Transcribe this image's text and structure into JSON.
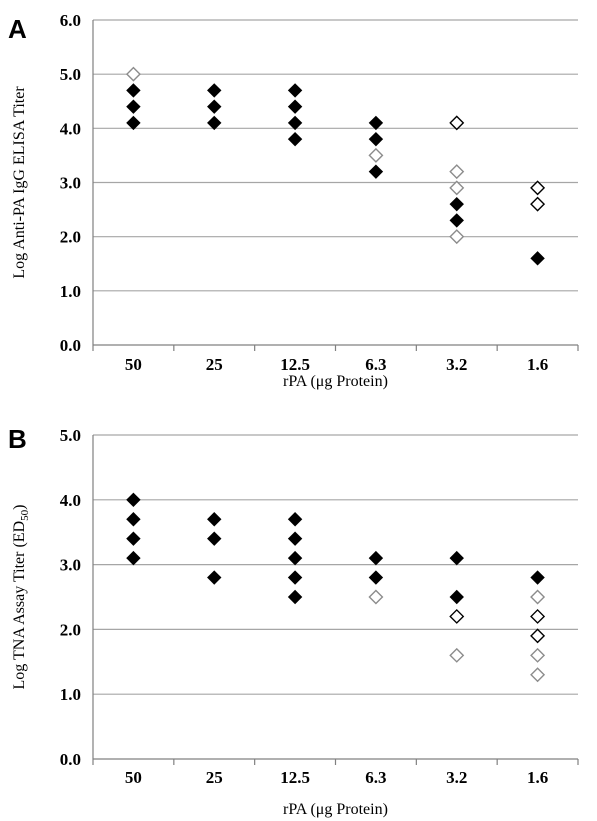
{
  "chart_data": [
    {
      "panel": "A",
      "type": "scatter",
      "categories": [
        "50",
        "25",
        "12.5",
        "6.3",
        "3.2",
        "1.6"
      ],
      "xlabel": "rPA (μg Protein)",
      "ylabel": "Log Anti-PA IgG ELISA Titer",
      "ylim": [
        0,
        6
      ],
      "yticks": [
        "0.0",
        "1.0",
        "2.0",
        "3.0",
        "4.0",
        "5.0",
        "6.0"
      ],
      "grid": true,
      "series": [
        {
          "marker": "filled-diamond",
          "color": "#000000",
          "points": [
            [
              "50",
              4.7
            ],
            [
              "50",
              4.4
            ],
            [
              "50",
              4.1
            ],
            [
              "25",
              4.7
            ],
            [
              "25",
              4.4
            ],
            [
              "25",
              4.1
            ],
            [
              "12.5",
              4.7
            ],
            [
              "12.5",
              4.4
            ],
            [
              "12.5",
              4.1
            ],
            [
              "12.5",
              3.8
            ],
            [
              "6.3",
              4.1
            ],
            [
              "6.3",
              3.8
            ],
            [
              "6.3",
              3.2
            ],
            [
              "3.2",
              2.6
            ],
            [
              "3.2",
              2.3
            ],
            [
              "1.6",
              1.6
            ]
          ]
        },
        {
          "marker": "open-diamond-black",
          "color": "#000000",
          "points": [
            [
              "3.2",
              4.1
            ],
            [
              "1.6",
              2.9
            ],
            [
              "1.6",
              2.6
            ]
          ]
        },
        {
          "marker": "open-diamond-gray",
          "color": "#8c8c8c",
          "points": [
            [
              "50",
              5.0
            ],
            [
              "6.3",
              3.5
            ],
            [
              "3.2",
              3.2
            ],
            [
              "3.2",
              2.9
            ],
            [
              "3.2",
              2.0
            ]
          ]
        }
      ]
    },
    {
      "panel": "B",
      "type": "scatter",
      "categories": [
        "50",
        "25",
        "12.5",
        "6.3",
        "3.2",
        "1.6"
      ],
      "xlabel": "rPA (μg Protein)",
      "ylabel_main": "Log TNA Assay Titer (ED",
      "ylabel_sub": "50",
      "ylabel_end": ")",
      "ylim": [
        0,
        5
      ],
      "yticks": [
        "0.0",
        "1.0",
        "2.0",
        "3.0",
        "4.0",
        "5.0"
      ],
      "grid": true,
      "series": [
        {
          "marker": "filled-diamond",
          "color": "#000000",
          "points": [
            [
              "50",
              4.0
            ],
            [
              "50",
              3.7
            ],
            [
              "50",
              3.4
            ],
            [
              "50",
              3.1
            ],
            [
              "25",
              3.7
            ],
            [
              "25",
              3.4
            ],
            [
              "25",
              2.8
            ],
            [
              "12.5",
              3.7
            ],
            [
              "12.5",
              3.4
            ],
            [
              "12.5",
              3.1
            ],
            [
              "12.5",
              2.8
            ],
            [
              "12.5",
              2.5
            ],
            [
              "6.3",
              3.1
            ],
            [
              "6.3",
              2.8
            ],
            [
              "3.2",
              3.1
            ],
            [
              "3.2",
              2.5
            ],
            [
              "1.6",
              2.8
            ]
          ]
        },
        {
          "marker": "open-diamond-black",
          "color": "#000000",
          "points": [
            [
              "3.2",
              2.2
            ],
            [
              "1.6",
              2.2
            ],
            [
              "1.6",
              1.9
            ]
          ]
        },
        {
          "marker": "open-diamond-gray",
          "color": "#8c8c8c",
          "points": [
            [
              "6.3",
              2.5
            ],
            [
              "3.2",
              1.6
            ],
            [
              "1.6",
              2.5
            ],
            [
              "1.6",
              1.6
            ],
            [
              "1.6",
              1.3
            ]
          ]
        }
      ]
    }
  ]
}
